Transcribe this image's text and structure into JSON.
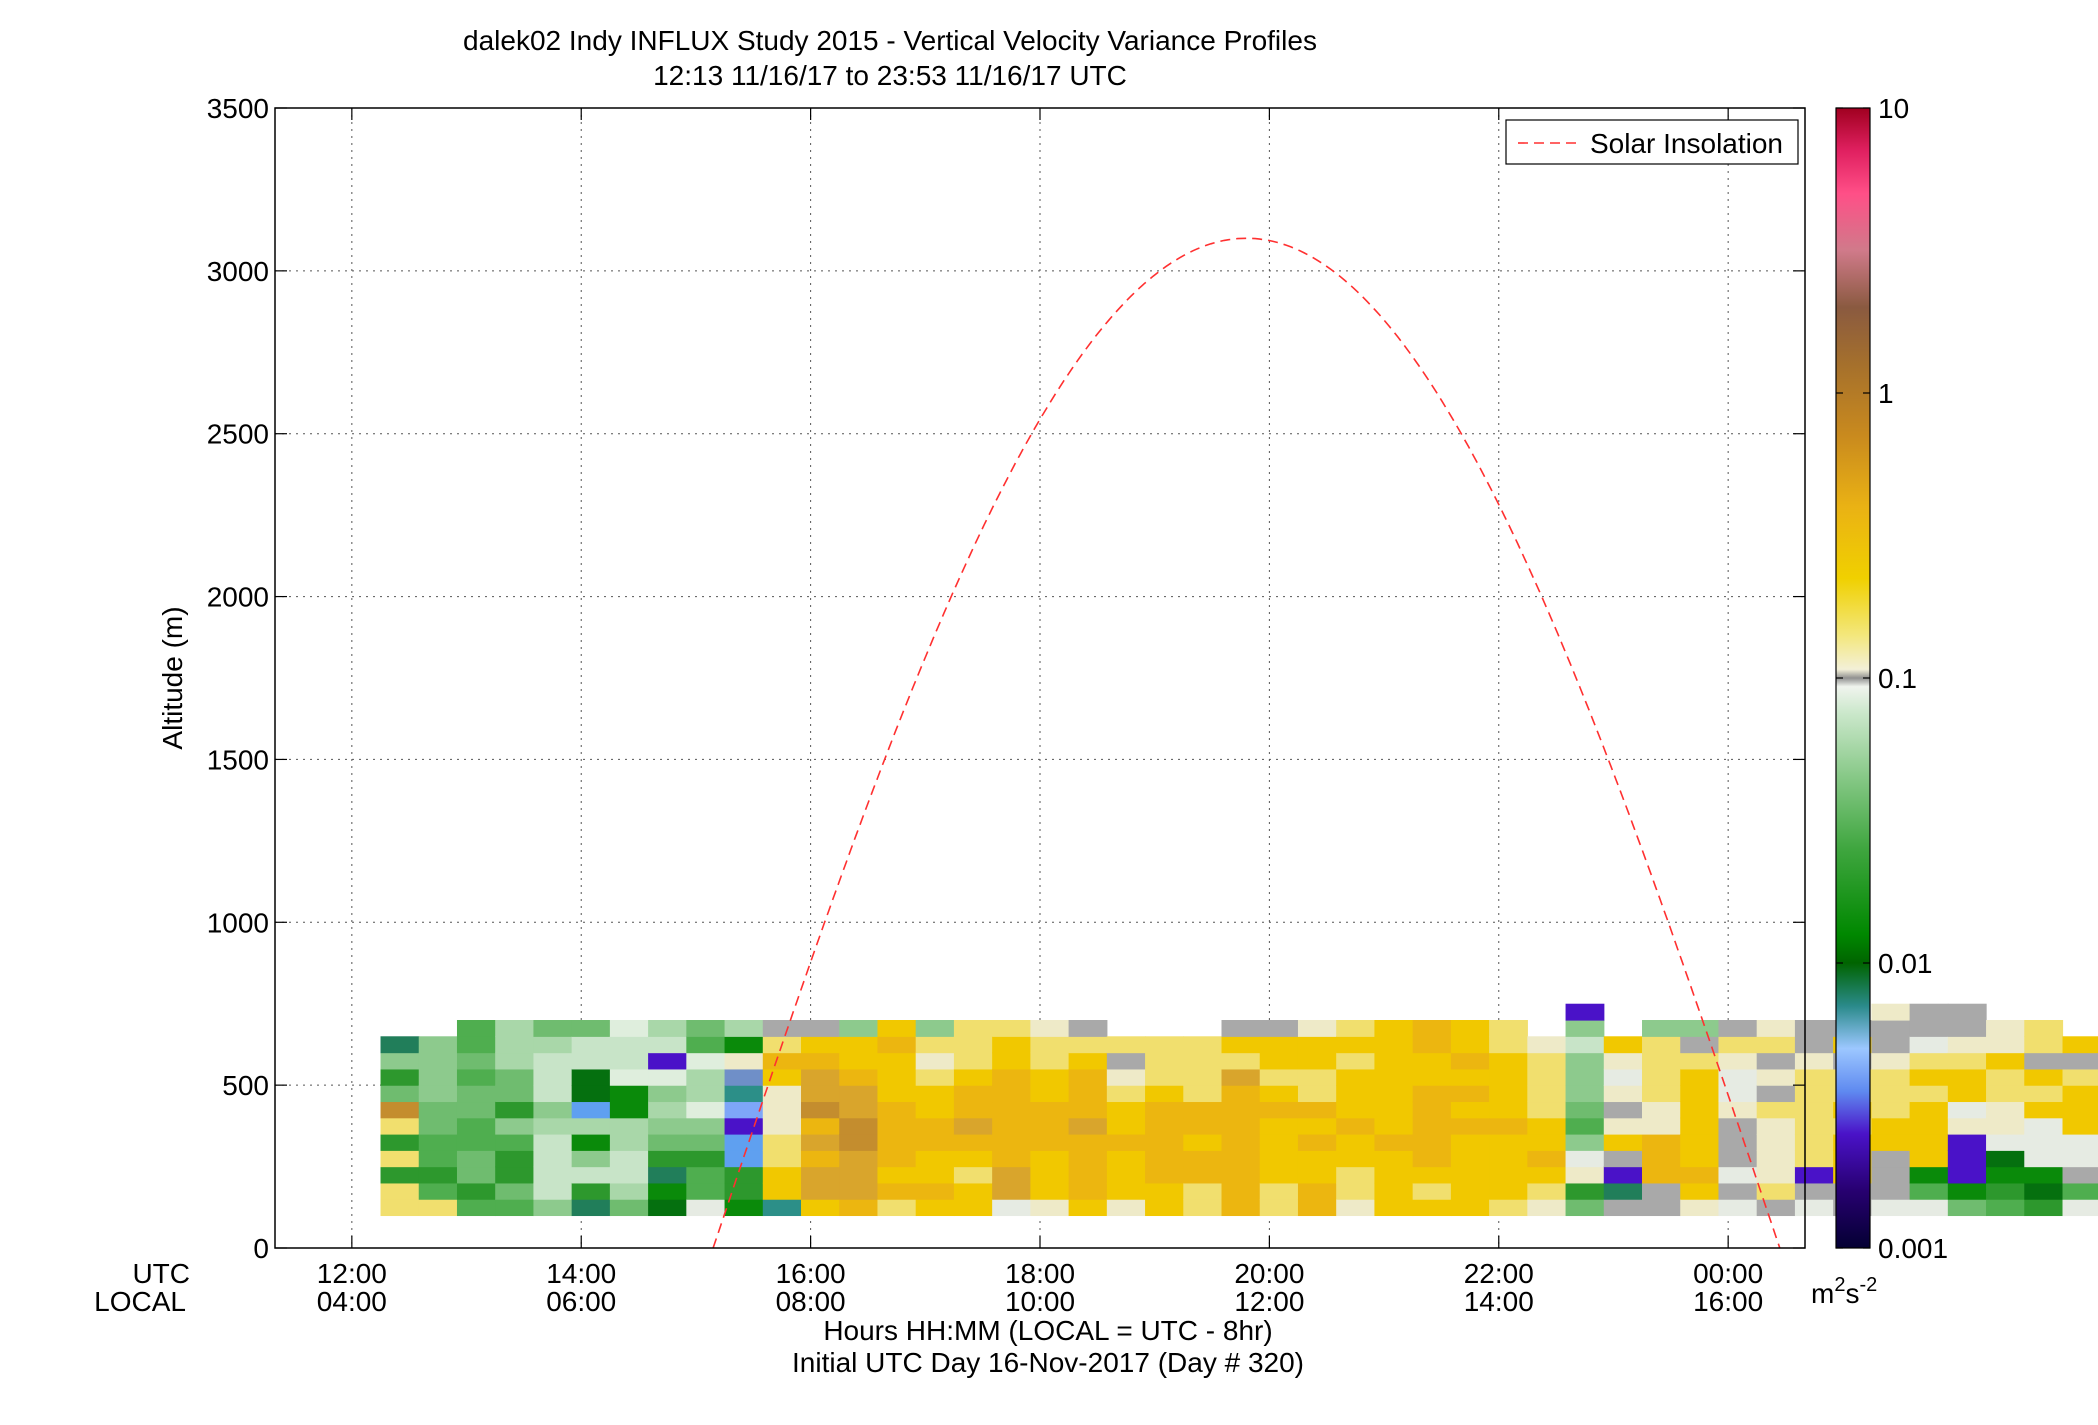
{
  "chart_data": {
    "type": "heatmap",
    "title": "dalek02 Indy INFLUX Study 2015 - Vertical Velocity Variance Profiles",
    "subtitle": "12:13 11/16/17 to 23:53 11/16/17  UTC",
    "ylabel": "Altitude (m)",
    "xlabel": "Hours HH:MM  (LOCAL = UTC - 8hr)",
    "xlabel2": "Initial UTC Day 16-Nov-2017 (Day # 320)",
    "row_labels": {
      "utc": "UTC",
      "local": "LOCAL"
    },
    "x_ticks_utc": [
      "12:00",
      "14:00",
      "16:00",
      "18:00",
      "20:00",
      "22:00",
      "00:00"
    ],
    "x_ticks_local": [
      "04:00",
      "06:00",
      "08:00",
      "10:00",
      "12:00",
      "14:00",
      "16:00"
    ],
    "x_tick_hours": [
      12,
      14,
      16,
      18,
      20,
      22,
      24
    ],
    "xlim_hours": [
      11.33,
      24.67
    ],
    "y_ticks": [
      0,
      500,
      1000,
      1500,
      2000,
      2500,
      3000,
      3500
    ],
    "ylim": [
      0,
      3500
    ],
    "grid": true,
    "heatmap": {
      "start_hour": 12.25,
      "step_hours": 0.3333,
      "start_altitude_m": 100,
      "step_altitude_m": 50,
      "columns": [
        "CCTCTCGRTQWK",
        "CSTSSRRQQQQM",
        "STRRSSRRSRSS",
        "SRTTSQTRRPPP",
        "QOOOOPQOOOPR",
        "WTOQUPXVVOOR",
        "RPOOPPUUNOON",
        "VUWTRQPQNYOP",
        "ZSSTRQNPPNSR",
        "UTTXXYbceBUP",
        "cDDCCBBBDECA",
        "DFFEFEGFFEDA",
        "EFFFGGFFEDDQ",
        "CEDEEEEDDDED",
        "DEDDEEDDCBCQ",
        "DDCDEFEEDCCC",
        "ZFFEEEEEEDDC",
        "BDDDEEEDDCCB",
        "DEEEEFEEEDCA",
        "BDDDEDDCBAC",
        "DDEEEEEDCCC",
        "CCEEDEECCCC",
        "EEEEEEEEFCDA",
        "CCDDDDEDCDDA",
        "EEDDEDECCDDB",
        "BCCDDEDDDCDC",
        "DDDDEDDDDDDD",
        "DCDEEEEEDDEE",
        "DDDDDEDEDEDD",
        "CDDDDEDDDDCC",
        "BCDEDDCCCCB",
        "RTBZQSRQQQOQY",
        "AWYADBABZBD",
        "AAEEEBBCCCCQ",
        "BDEDDDDDDCAQ",
        "ZAZAAABZZBCA",
        "ACBBBBCABACB",
        "ZAYCCCCCCBAA",
        "AADDDCDCCADA",
        "ZAAADDCCCBAAB",
        "ZSUDDDDCDCZAA",
        "RUYYYBZDDCBAA",
        "STUVZBBCCDBB",
        "TVUZZZDCDACC",
        "ZSAZZDDDCAD"
      ]
    },
    "solar_curve": {
      "label": "Solar Insolation",
      "peak_altitude_m": 3100,
      "peak_hour": 19.8,
      "zero_hours": [
        15.15,
        24.45
      ],
      "color": "#ff3030"
    },
    "colorbar": {
      "ticks": [
        "10",
        "1",
        "0.1",
        "0.01",
        "0.001"
      ],
      "log_range": [
        -3,
        1
      ],
      "unit_base": "m",
      "unit_sup1": "2",
      "unit_mid": "s",
      "unit_sup2": "-2",
      "stops": [
        [
          -3.0,
          "#040033"
        ],
        [
          -2.8,
          "#270070"
        ],
        [
          -2.6,
          "#4a12c8"
        ],
        [
          -2.45,
          "#5f8af0"
        ],
        [
          -2.3,
          "#9cc7ff"
        ],
        [
          -2.15,
          "#2a8a8a"
        ],
        [
          -2.0,
          "#006400"
        ],
        [
          -1.9,
          "#008800"
        ],
        [
          -1.6,
          "#3fa63f"
        ],
        [
          -1.35,
          "#86c886"
        ],
        [
          -1.12,
          "#cce8cc"
        ],
        [
          -1.03,
          "#f0f4ee"
        ],
        [
          -1.0,
          "#909090"
        ],
        [
          -0.97,
          "#f3f0d8"
        ],
        [
          -0.85,
          "#f3e77c"
        ],
        [
          -0.65,
          "#f0d000"
        ],
        [
          -0.4,
          "#eab214"
        ],
        [
          -0.15,
          "#c98a1e"
        ],
        [
          0.1,
          "#a5702c"
        ],
        [
          0.3,
          "#8a5a40"
        ],
        [
          0.5,
          "#d07a8a"
        ],
        [
          0.7,
          "#ff4f87"
        ],
        [
          0.85,
          "#e02060"
        ],
        [
          1.0,
          "#a00020"
        ]
      ]
    },
    "palette": {
      "A": "#a9a9a9",
      "B": "#eeeac8",
      "C": "#f1df6e",
      "D": "#f1c800",
      "E": "#ecb610",
      "F": "#d9a52c",
      "G": "#c48d2e",
      "N": "#dfeedd",
      "O": "#c8e4c8",
      "P": "#a9d7a9",
      "Q": "#8dca8d",
      "R": "#6fbc6f",
      "S": "#4fae4f",
      "T": "#2d982d",
      "U": "#0a8a0a",
      "V": "#05700f",
      "W": "#217e5a",
      "X": "#5fa0f0",
      "Y": "#4a12c8",
      "Z": "#e6ebe3",
      "a": "#cad9d6",
      "b": "#7ea6f8",
      "c": "#2c8f88",
      "d": "#0a1040",
      "e": "#6f8fc8"
    }
  }
}
